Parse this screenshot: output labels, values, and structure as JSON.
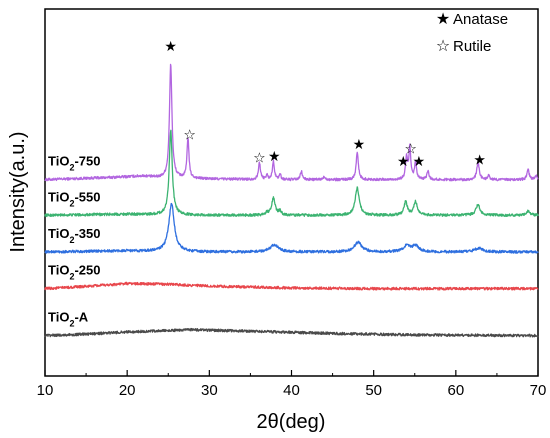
{
  "chart_data": {
    "type": "line",
    "title": "",
    "xlabel": "2θ(deg)",
    "ylabel": "Intensity(a.u.)",
    "xlim": [
      10,
      70
    ],
    "ylim": [
      0,
      100
    ],
    "xticks": [
      10,
      20,
      30,
      40,
      50,
      60,
      70
    ],
    "grid": false,
    "y_tick_labels_shown": false,
    "legend": {
      "placement": "top-right",
      "entries": [
        {
          "symbol": "★",
          "label": "Anatase",
          "icon": "filled-star-icon"
        },
        {
          "symbol": "☆",
          "label": "Rutile",
          "icon": "open-star-icon"
        }
      ]
    },
    "series": [
      {
        "name": "TiO2-750",
        "label_main": "TiO",
        "label_sub": "2",
        "label_suffix": "-750",
        "color": "#b266e0",
        "baseline": 53.5,
        "background": [
          [
            10,
            0
          ],
          [
            18,
            0.6
          ],
          [
            22,
            1.0
          ],
          [
            24,
            0.5
          ],
          [
            27,
            0.4
          ],
          [
            30,
            0.2
          ],
          [
            40,
            0
          ],
          [
            55,
            0
          ],
          [
            70,
            0
          ]
        ],
        "peaks": [
          [
            25.3,
            31,
            0.18
          ],
          [
            27.4,
            11,
            0.14
          ],
          [
            36.1,
            4.6,
            0.14
          ],
          [
            37.0,
            1.2,
            0.12
          ],
          [
            37.8,
            5,
            0.14
          ],
          [
            38.6,
            1.5,
            0.12
          ],
          [
            41.2,
            2.3,
            0.14
          ],
          [
            44.0,
            0.8,
            0.15
          ],
          [
            48.0,
            7.5,
            0.16
          ],
          [
            54.0,
            6,
            0.14
          ],
          [
            54.4,
            8.6,
            0.14
          ],
          [
            55.1,
            4.6,
            0.14
          ],
          [
            56.6,
            2.4,
            0.14
          ],
          [
            62.7,
            4.6,
            0.18
          ],
          [
            64.0,
            1,
            0.16
          ],
          [
            68.8,
            2.6,
            0.16
          ],
          [
            69.8,
            1,
            0.15
          ]
        ]
      },
      {
        "name": "TiO2-550",
        "label_main": "TiO",
        "label_sub": "2",
        "label_suffix": "-550",
        "color": "#3cb371",
        "baseline": 43.8,
        "background": [
          [
            10,
            0
          ],
          [
            20,
            0.3
          ],
          [
            30,
            0
          ],
          [
            70,
            0
          ]
        ],
        "peaks": [
          [
            25.3,
            23,
            0.22
          ],
          [
            37.0,
            0.6,
            0.2
          ],
          [
            37.8,
            4.6,
            0.26
          ],
          [
            38.6,
            1.0,
            0.2
          ],
          [
            48.0,
            7.4,
            0.3
          ],
          [
            53.9,
            3.6,
            0.24
          ],
          [
            55.1,
            3.6,
            0.26
          ],
          [
            62.7,
            2.8,
            0.3
          ],
          [
            68.8,
            1.2,
            0.28
          ]
        ]
      },
      {
        "name": "TiO2-350",
        "label_main": "TiO",
        "label_sub": "2",
        "label_suffix": "-350",
        "color": "#2e6fdf",
        "baseline": 33.8,
        "background": [
          [
            10,
            0
          ],
          [
            20,
            0.3
          ],
          [
            30,
            0
          ],
          [
            70,
            0
          ]
        ],
        "peaks": [
          [
            25.4,
            13,
            0.4
          ],
          [
            37.9,
            2.0,
            0.6
          ],
          [
            48.1,
            2.6,
            0.55
          ],
          [
            54.0,
            1.6,
            0.5
          ],
          [
            55.1,
            1.6,
            0.5
          ],
          [
            62.8,
            1.0,
            0.6
          ]
        ]
      },
      {
        "name": "TiO2-250",
        "label_main": "TiO",
        "label_sub": "2",
        "label_suffix": "-250",
        "color": "#e8474c",
        "baseline": 23.8,
        "background": [
          [
            10,
            0
          ],
          [
            15,
            0.6
          ],
          [
            20,
            1.4
          ],
          [
            25,
            1.2
          ],
          [
            30,
            0.7
          ],
          [
            40,
            0.2
          ],
          [
            50,
            0
          ],
          [
            70,
            0
          ]
        ],
        "peaks": []
      },
      {
        "name": "TiO2-A",
        "label_main": "TiO",
        "label_sub": "2",
        "label_suffix": "-A",
        "color": "#4a4a4a",
        "baseline": 11.0,
        "background": [
          [
            10,
            0
          ],
          [
            15,
            0.4
          ],
          [
            20,
            1.0
          ],
          [
            28,
            1.6
          ],
          [
            35,
            1.2
          ],
          [
            45,
            0.6
          ],
          [
            55,
            0.2
          ],
          [
            70,
            0
          ]
        ],
        "peaks": []
      }
    ],
    "annotations": [
      {
        "x": 25.3,
        "y": 88.5,
        "symbol": "★",
        "phase": "Anatase"
      },
      {
        "x": 27.6,
        "y": 64.5,
        "symbol": "☆",
        "phase": "Rutile"
      },
      {
        "x": 36.1,
        "y": 58.2,
        "symbol": "☆",
        "phase": "Rutile"
      },
      {
        "x": 37.9,
        "y": 58.6,
        "symbol": "★",
        "phase": "Anatase"
      },
      {
        "x": 48.2,
        "y": 61.8,
        "symbol": "★",
        "phase": "Anatase"
      },
      {
        "x": 53.6,
        "y": 57.2,
        "symbol": "★",
        "phase": "Anatase"
      },
      {
        "x": 54.5,
        "y": 60.6,
        "symbol": "☆",
        "phase": "Rutile"
      },
      {
        "x": 55.5,
        "y": 57.2,
        "symbol": "★",
        "phase": "Anatase"
      },
      {
        "x": 62.9,
        "y": 57.6,
        "symbol": "★",
        "phase": "Anatase"
      }
    ]
  }
}
